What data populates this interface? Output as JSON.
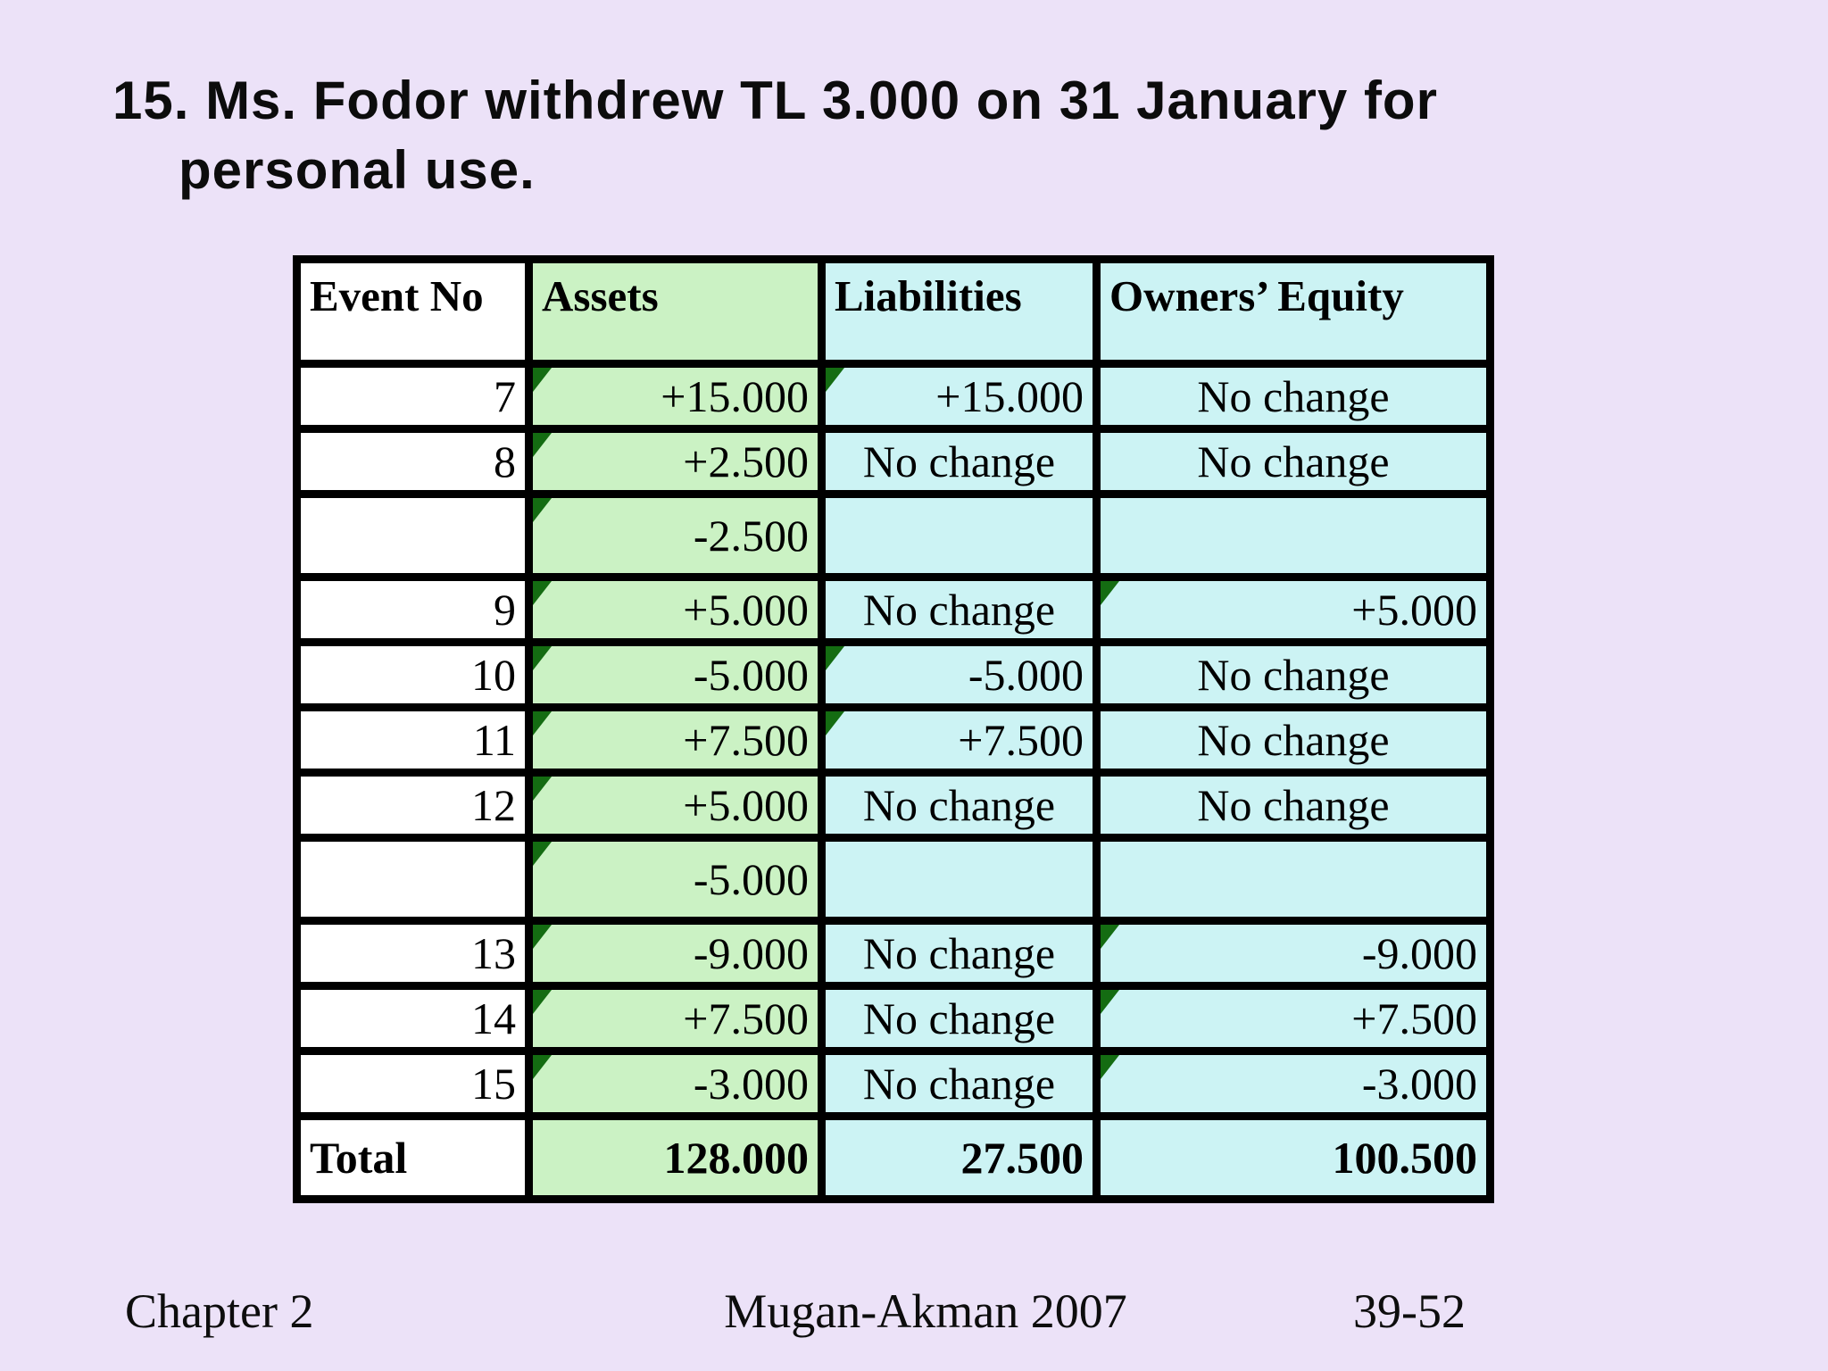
{
  "title": {
    "line1": "15. Ms. Fodor withdrew TL 3.000 on 31 January for",
    "line2": "personal use."
  },
  "colors": {
    "background": "#ece2f8",
    "assets_green": "#cbf2c4",
    "liabilities_cyan": "#ccf3f4",
    "event_white": "#ffffff",
    "marker_green": "#146c12",
    "border": "#000000"
  },
  "table": {
    "columns": [
      {
        "key": "event",
        "label": "Event No",
        "bg": "white"
      },
      {
        "key": "assets",
        "label": "Assets",
        "bg": "green"
      },
      {
        "key": "liabilities",
        "label": "Liabilities",
        "bg": "cyan"
      },
      {
        "key": "equity",
        "label": "Owners’ Equity",
        "bg": "cyan"
      }
    ],
    "rows": [
      {
        "event": "7",
        "tall": false,
        "assets": {
          "text": "+15.000",
          "tri": true
        },
        "liabilities": {
          "text": "+15.000",
          "tri": true,
          "align": "right"
        },
        "equity": {
          "text": "No change",
          "align": "center"
        }
      },
      {
        "event": "8",
        "tall": false,
        "assets": {
          "text": "+2.500",
          "tri": true
        },
        "liabilities": {
          "text": "No change",
          "align": "center"
        },
        "equity": {
          "text": "No change",
          "align": "center"
        }
      },
      {
        "event": "",
        "tall": true,
        "assets": {
          "text": "-2.500",
          "tri": true
        },
        "liabilities": {
          "text": "",
          "align": "center"
        },
        "equity": {
          "text": "",
          "align": "center"
        }
      },
      {
        "event": "9",
        "tall": false,
        "assets": {
          "text": "+5.000",
          "tri": true
        },
        "liabilities": {
          "text": "No change",
          "align": "center"
        },
        "equity": {
          "text": "+5.000",
          "tri": true,
          "align": "right"
        }
      },
      {
        "event": "10",
        "tall": false,
        "assets": {
          "text": "-5.000",
          "tri": true
        },
        "liabilities": {
          "text": "-5.000",
          "tri": true,
          "align": "right"
        },
        "equity": {
          "text": "No change",
          "align": "center"
        }
      },
      {
        "event": "11",
        "tall": false,
        "assets": {
          "text": "+7.500",
          "tri": true
        },
        "liabilities": {
          "text": "+7.500",
          "tri": true,
          "align": "right"
        },
        "equity": {
          "text": "No change",
          "align": "center"
        }
      },
      {
        "event": "12",
        "tall": false,
        "assets": {
          "text": "+5.000",
          "tri": true
        },
        "liabilities": {
          "text": "No change",
          "align": "center"
        },
        "equity": {
          "text": "No change",
          "align": "center"
        }
      },
      {
        "event": "",
        "tall": true,
        "assets": {
          "text": "-5.000",
          "tri": true
        },
        "liabilities": {
          "text": "",
          "align": "center"
        },
        "equity": {
          "text": "",
          "align": "center"
        }
      },
      {
        "event": "13",
        "tall": false,
        "assets": {
          "text": "-9.000",
          "tri": true
        },
        "liabilities": {
          "text": "No change",
          "align": "center"
        },
        "equity": {
          "text": "-9.000",
          "tri": true,
          "align": "right"
        }
      },
      {
        "event": "14",
        "tall": false,
        "assets": {
          "text": "+7.500",
          "tri": true
        },
        "liabilities": {
          "text": "No change",
          "align": "center"
        },
        "equity": {
          "text": "+7.500",
          "tri": true,
          "align": "right"
        }
      },
      {
        "event": "15",
        "tall": false,
        "assets": {
          "text": "-3.000",
          "tri": true
        },
        "liabilities": {
          "text": "No change",
          "align": "center"
        },
        "equity": {
          "text": "-3.000",
          "tri": true,
          "align": "right"
        }
      }
    ],
    "total": {
      "label": "Total",
      "assets": "128.000",
      "liabilities": "27.500",
      "equity": "100.500"
    }
  },
  "footer": {
    "left": "Chapter 2",
    "center": "Mugan-Akman 2007",
    "right": "39-52"
  }
}
